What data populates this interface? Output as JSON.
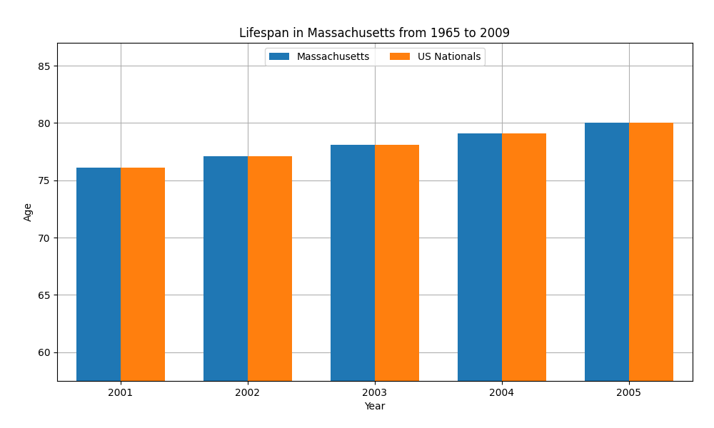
{
  "chart_data": {
    "type": "bar",
    "title": "Lifespan in Massachusetts from 1965 to 2009",
    "x_label": "Year",
    "y_label": "Age",
    "categories": [
      "2001",
      "2002",
      "2003",
      "2004",
      "2005"
    ],
    "series": [
      {
        "name": "Massachusetts",
        "values": [
          76.1,
          77.1,
          78.1,
          79.1,
          80.0
        ]
      },
      {
        "name": "US Nationals",
        "values": [
          76.1,
          77.1,
          78.1,
          79.1,
          80.0
        ]
      }
    ],
    "ylim": [
      57.5,
      87
    ],
    "yticks": [
      60,
      65,
      70,
      75,
      80,
      85
    ],
    "grid": true,
    "legend": "upper center"
  }
}
